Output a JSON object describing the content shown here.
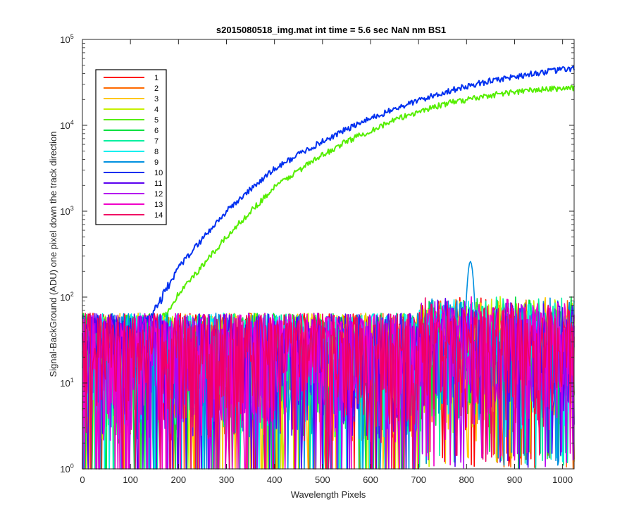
{
  "chart_data": {
    "type": "line",
    "title": "s2015080518_img.mat int time = 5.6 sec  NaN nm BS1",
    "xlabel": "Wavelength Pixels",
    "ylabel": "Signal-BackGround (ADU) one pixel down the track direction",
    "xlim": [
      0,
      1024
    ],
    "ylim": [
      1,
      100000
    ],
    "yscale": "log",
    "grid": false,
    "legend_position": "top-left",
    "x_ticks": [
      {
        "value": 0,
        "label": "0"
      },
      {
        "value": 100,
        "label": "100"
      },
      {
        "value": 200,
        "label": "200"
      },
      {
        "value": 300,
        "label": "300"
      },
      {
        "value": 400,
        "label": "400"
      },
      {
        "value": 500,
        "label": "500"
      },
      {
        "value": 600,
        "label": "600"
      },
      {
        "value": 700,
        "label": "700"
      },
      {
        "value": 800,
        "label": "800"
      },
      {
        "value": 900,
        "label": "900"
      },
      {
        "value": 1000,
        "label": "1000"
      }
    ],
    "y_ticks": [
      {
        "value": 1,
        "base": "10",
        "exp": "0"
      },
      {
        "value": 10,
        "base": "10",
        "exp": "1"
      },
      {
        "value": 100,
        "base": "10",
        "exp": "2"
      },
      {
        "value": 1000,
        "base": "10",
        "exp": "3"
      },
      {
        "value": 10000,
        "base": "10",
        "exp": "4"
      },
      {
        "value": 100000,
        "base": "10",
        "exp": "5"
      }
    ],
    "series": [
      {
        "name": "1",
        "color": "#ff0000",
        "profile": "noise"
      },
      {
        "name": "2",
        "color": "#ff6a00",
        "profile": "noise"
      },
      {
        "name": "3",
        "color": "#ffc800",
        "profile": "noise"
      },
      {
        "name": "4",
        "color": "#c8f000",
        "profile": "noise"
      },
      {
        "name": "5",
        "color": "#55ee00",
        "profile": "signal",
        "points": [
          [
            0,
            20
          ],
          [
            100,
            22
          ],
          [
            150,
            38
          ],
          [
            175,
            65
          ],
          [
            200,
            110
          ],
          [
            250,
            230
          ],
          [
            300,
            500
          ],
          [
            350,
            1000
          ],
          [
            400,
            1900
          ],
          [
            450,
            3000
          ],
          [
            500,
            4500
          ],
          [
            550,
            6500
          ],
          [
            600,
            8700
          ],
          [
            650,
            11500
          ],
          [
            700,
            14500
          ],
          [
            750,
            17500
          ],
          [
            800,
            20000
          ],
          [
            850,
            22500
          ],
          [
            900,
            24500
          ],
          [
            950,
            26000
          ],
          [
            1000,
            27000
          ],
          [
            1024,
            27500
          ]
        ]
      },
      {
        "name": "6",
        "color": "#00e040",
        "profile": "noise"
      },
      {
        "name": "7",
        "color": "#00f0a0",
        "profile": "noise"
      },
      {
        "name": "8",
        "color": "#00f0f0",
        "profile": "noise"
      },
      {
        "name": "9",
        "color": "#0090e0",
        "profile": "noise",
        "peak": {
          "x": 808,
          "y": 260
        }
      },
      {
        "name": "10",
        "color": "#0030f0",
        "profile": "signal",
        "points": [
          [
            0,
            22
          ],
          [
            100,
            28
          ],
          [
            140,
            55
          ],
          [
            175,
            120
          ],
          [
            200,
            220
          ],
          [
            250,
            480
          ],
          [
            300,
            1000
          ],
          [
            350,
            1800
          ],
          [
            400,
            3100
          ],
          [
            450,
            4600
          ],
          [
            500,
            6500
          ],
          [
            550,
            9000
          ],
          [
            600,
            12000
          ],
          [
            650,
            15500
          ],
          [
            700,
            19500
          ],
          [
            750,
            24000
          ],
          [
            800,
            28500
          ],
          [
            850,
            33000
          ],
          [
            900,
            37000
          ],
          [
            950,
            41000
          ],
          [
            1000,
            44500
          ],
          [
            1024,
            46000
          ]
        ]
      },
      {
        "name": "11",
        "color": "#5a00f0",
        "profile": "noise"
      },
      {
        "name": "12",
        "color": "#b400f0",
        "profile": "noise"
      },
      {
        "name": "13",
        "color": "#f000c8",
        "profile": "noise"
      },
      {
        "name": "14",
        "color": "#f00064",
        "profile": "noise"
      }
    ]
  }
}
